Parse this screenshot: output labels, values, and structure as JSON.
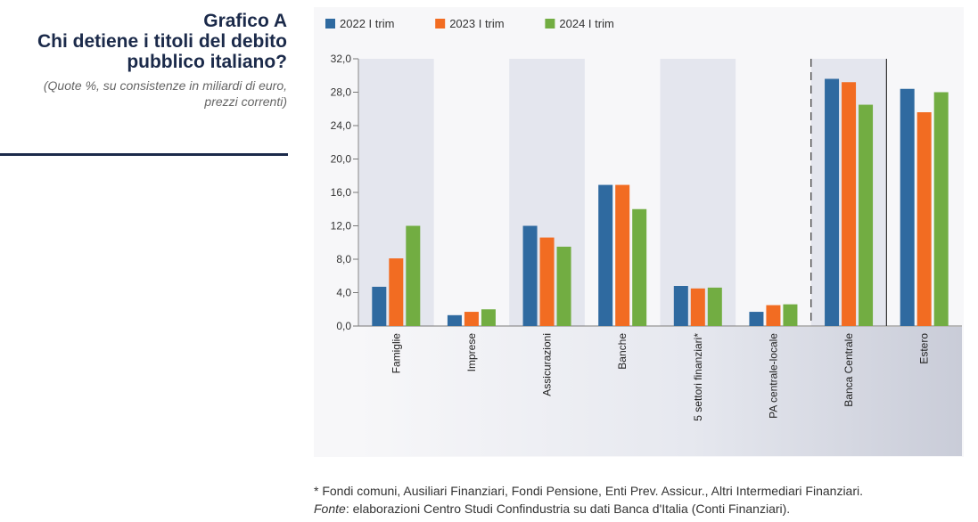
{
  "header": {
    "title_lines": [
      "Grafico A",
      "Chi detiene i titoli del debito",
      "pubblico italiano?"
    ],
    "subtitle": "(Quote %, su consistenze in miliardi di euro,\nprezzi correnti)"
  },
  "colors": {
    "title": "#1b2a4a",
    "shade": "#e4e6ee",
    "series": [
      "#2f6aa0",
      "#f26c22",
      "#72ad42"
    ]
  },
  "chart_data": {
    "type": "bar",
    "title": "",
    "xlabel": "",
    "ylabel": "",
    "ylim": [
      0,
      32
    ],
    "yticks": [
      0,
      4,
      8,
      12,
      16,
      20,
      24,
      28,
      32
    ],
    "ytick_labels": [
      "0,0",
      "4,0",
      "8,0",
      "12,0",
      "16,0",
      "20,0",
      "24,0",
      "28,0",
      "32,0"
    ],
    "legend_position": "top-left",
    "categories": [
      "Famiglie",
      "Imprese",
      "Assicurazioni",
      "Banche",
      "5 settori finanziari*",
      "PA centrale-locale",
      "Banca Centrale",
      "Estero"
    ],
    "shaded_categories": [
      "Famiglie",
      "Assicurazioni",
      "5 settori finanziari*",
      "Banca Centrale"
    ],
    "separators": [
      {
        "after": "PA centrale-locale",
        "style": "dashed"
      },
      {
        "after": "Banca Centrale",
        "style": "solid"
      }
    ],
    "series": [
      {
        "name": "2022 I trim",
        "values": [
          4.7,
          1.3,
          12.0,
          16.9,
          4.8,
          1.7,
          29.6,
          28.4
        ]
      },
      {
        "name": "2023 I trim",
        "values": [
          8.1,
          1.7,
          10.6,
          16.9,
          4.5,
          2.5,
          29.2,
          25.6
        ]
      },
      {
        "name": "2024 I trim",
        "values": [
          12.0,
          2.0,
          9.5,
          14.0,
          4.6,
          2.6,
          26.5,
          28.0
        ]
      }
    ]
  },
  "notes": {
    "footnote": "* Fondi comuni, Ausiliari Finanziari, Fondi Pensione, Enti Prev. Assicur., Altri Intermediari Finanziari.",
    "fonte_label": "Fonte",
    "fonte_text": ": elaborazioni Centro Studi Confindustria su dati Banca d'Italia (Conti Finanziari)."
  }
}
